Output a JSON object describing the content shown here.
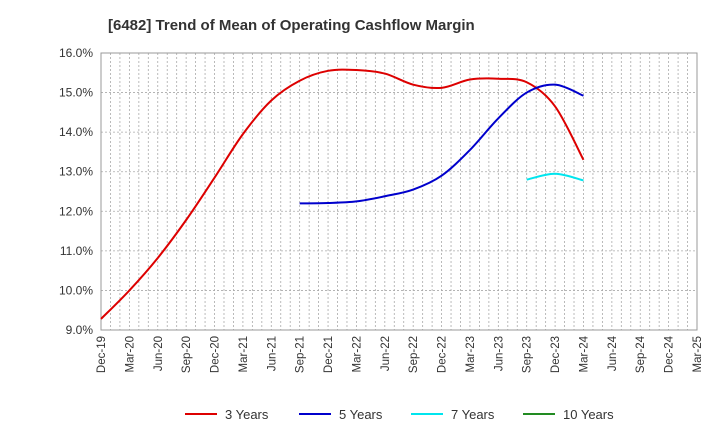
{
  "chart_data": {
    "type": "line",
    "title": "[6482]  Trend of Mean of Operating Cashflow Margin",
    "xlabel": "",
    "ylabel": "",
    "ylim": [
      9.0,
      16.0
    ],
    "yticks": [
      "9.0%",
      "10.0%",
      "11.0%",
      "12.0%",
      "13.0%",
      "14.0%",
      "15.0%",
      "16.0%"
    ],
    "ytick_values": [
      9,
      10,
      11,
      12,
      13,
      14,
      15,
      16
    ],
    "x_categories": [
      "Dec-19",
      "Mar-20",
      "Jun-20",
      "Sep-20",
      "Dec-20",
      "Mar-21",
      "Jun-21",
      "Sep-21",
      "Dec-21",
      "Mar-22",
      "Jun-22",
      "Sep-22",
      "Dec-22",
      "Mar-23",
      "Jun-23",
      "Sep-23",
      "Dec-23",
      "Mar-24",
      "Jun-24",
      "Sep-24",
      "Dec-24",
      "Mar-25"
    ],
    "grid": true,
    "legend_position": "bottom",
    "series": [
      {
        "name": "3 Years",
        "color": "#dd0000",
        "values": [
          9.28,
          10.0,
          10.82,
          11.78,
          12.85,
          13.95,
          14.8,
          15.3,
          15.55,
          15.57,
          15.48,
          15.2,
          15.12,
          15.33,
          15.35,
          15.26,
          14.65,
          13.3,
          null,
          null,
          null,
          null
        ]
      },
      {
        "name": "5 Years",
        "color": "#0000cc",
        "values": [
          null,
          null,
          null,
          null,
          null,
          null,
          null,
          12.2,
          12.21,
          12.25,
          12.38,
          12.55,
          12.9,
          13.55,
          14.35,
          15.0,
          15.2,
          14.92,
          null,
          null,
          null,
          null
        ]
      },
      {
        "name": "7 Years",
        "color": "#00e5ee",
        "values": [
          null,
          null,
          null,
          null,
          null,
          null,
          null,
          null,
          null,
          null,
          null,
          null,
          null,
          null,
          null,
          12.8,
          12.95,
          12.78,
          null,
          null,
          null,
          null
        ]
      },
      {
        "name": "10 Years",
        "color": "#228b22",
        "values": [
          null,
          null,
          null,
          null,
          null,
          null,
          null,
          null,
          null,
          null,
          null,
          null,
          null,
          null,
          null,
          null,
          null,
          null,
          null,
          null,
          null,
          null
        ]
      }
    ]
  }
}
